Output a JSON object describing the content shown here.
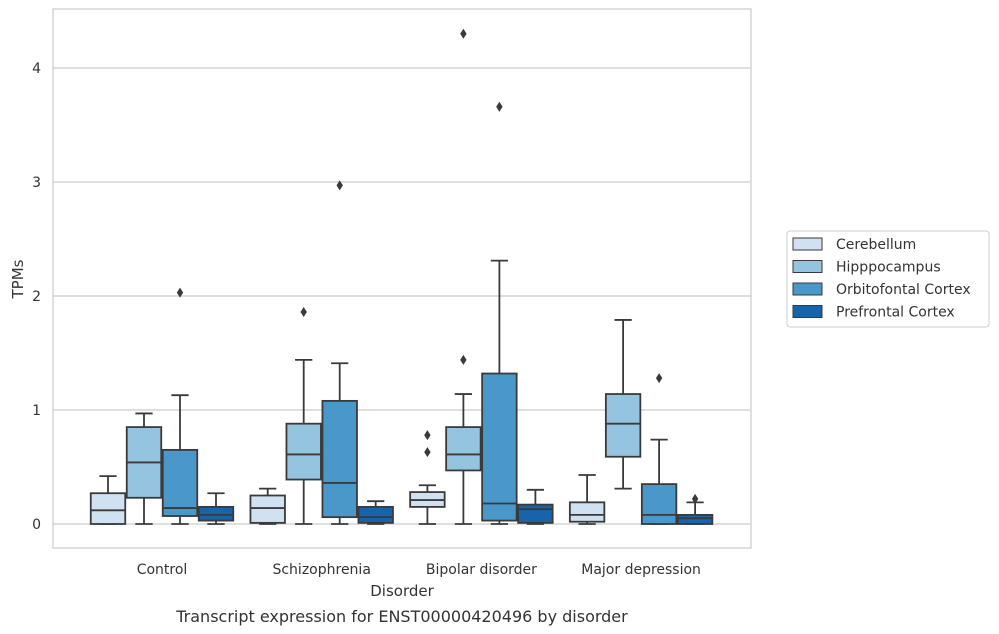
{
  "caption": "Transcript expression for ENST00000420496 by disorder",
  "chart_data": {
    "type": "box",
    "xlabel": "Disorder",
    "ylabel": "TPMs",
    "ylim": [
      -0.2,
      4.52
    ],
    "yticks": [
      0,
      1,
      2,
      3,
      4
    ],
    "grid": "horizontal",
    "legend_position": "right",
    "categories": [
      "Control",
      "Schizophrenia",
      "Bipolar disorder",
      "Major depression"
    ],
    "series": [
      {
        "name": "Cerebellum",
        "color": "#d0e1f2",
        "boxes": [
          {
            "whisker_low": 0.0,
            "q1": 0.0,
            "median": 0.12,
            "q3": 0.27,
            "whisker_high": 0.42,
            "outliers": []
          },
          {
            "whisker_low": 0.0,
            "q1": 0.01,
            "median": 0.14,
            "q3": 0.25,
            "whisker_high": 0.31,
            "outliers": []
          },
          {
            "whisker_low": 0.0,
            "q1": 0.15,
            "median": 0.21,
            "q3": 0.28,
            "whisker_high": 0.34,
            "outliers": [
              0.63,
              0.78
            ]
          },
          {
            "whisker_low": 0.0,
            "q1": 0.02,
            "median": 0.08,
            "q3": 0.19,
            "whisker_high": 0.43,
            "outliers": []
          }
        ]
      },
      {
        "name": "Hipppocampus",
        "color": "#94c4df",
        "boxes": [
          {
            "whisker_low": 0.0,
            "q1": 0.23,
            "median": 0.54,
            "q3": 0.85,
            "whisker_high": 0.97,
            "outliers": []
          },
          {
            "whisker_low": 0.0,
            "q1": 0.39,
            "median": 0.61,
            "q3": 0.88,
            "whisker_high": 1.44,
            "outliers": [
              1.86
            ]
          },
          {
            "whisker_low": 0.0,
            "q1": 0.47,
            "median": 0.61,
            "q3": 0.85,
            "whisker_high": 1.14,
            "outliers": [
              1.44,
              4.3
            ]
          },
          {
            "whisker_low": 0.31,
            "q1": 0.59,
            "median": 0.88,
            "q3": 1.14,
            "whisker_high": 1.79,
            "outliers": []
          }
        ]
      },
      {
        "name": "Orbitofontal Cortex",
        "color": "#4a98c9",
        "boxes": [
          {
            "whisker_low": 0.0,
            "q1": 0.07,
            "median": 0.14,
            "q3": 0.65,
            "whisker_high": 1.13,
            "outliers": [
              2.03
            ]
          },
          {
            "whisker_low": 0.0,
            "q1": 0.06,
            "median": 0.36,
            "q3": 1.08,
            "whisker_high": 1.41,
            "outliers": [
              2.97
            ]
          },
          {
            "whisker_low": 0.0,
            "q1": 0.03,
            "median": 0.18,
            "q3": 1.32,
            "whisker_high": 2.31,
            "outliers": [
              3.66
            ]
          },
          {
            "whisker_low": 0.0,
            "q1": 0.0,
            "median": 0.08,
            "q3": 0.35,
            "whisker_high": 0.74,
            "outliers": [
              1.28
            ]
          }
        ]
      },
      {
        "name": "Prefrontal Cortex",
        "color": "#1764ab",
        "boxes": [
          {
            "whisker_low": 0.0,
            "q1": 0.03,
            "median": 0.08,
            "q3": 0.15,
            "whisker_high": 0.27,
            "outliers": []
          },
          {
            "whisker_low": 0.0,
            "q1": 0.01,
            "median": 0.06,
            "q3": 0.15,
            "whisker_high": 0.2,
            "outliers": []
          },
          {
            "whisker_low": 0.0,
            "q1": 0.01,
            "median": 0.13,
            "q3": 0.17,
            "whisker_high": 0.3,
            "outliers": []
          },
          {
            "whisker_low": 0.0,
            "q1": 0.0,
            "median": 0.05,
            "q3": 0.08,
            "whisker_high": 0.19,
            "outliers": [
              0.22
            ]
          }
        ]
      }
    ]
  }
}
